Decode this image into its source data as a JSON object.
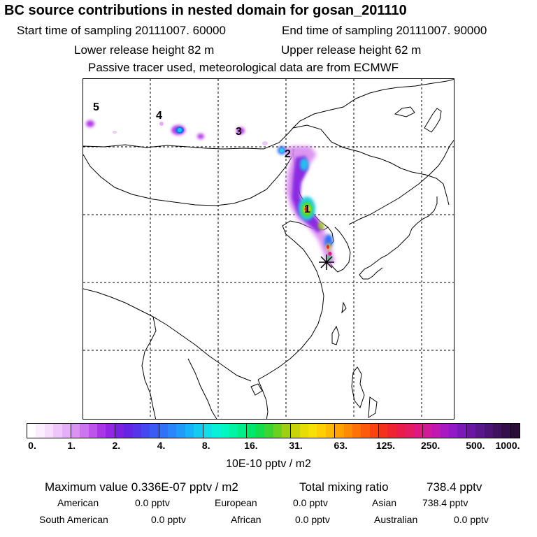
{
  "header": {
    "title": "BC  source contributions in nested domain for gosan_201110",
    "start_label": "Start time of sampling 20111007. 60000",
    "end_label": "End time of sampling 20111007. 90000",
    "lower_label": "Lower release height   82 m",
    "upper_label": "Upper release height   62 m",
    "tracer_note": "Passive tracer used, meteorological data are from ECMWF"
  },
  "map": {
    "source_markers": [
      "1",
      "2",
      "3",
      "4",
      "5"
    ],
    "receptor_symbol": "star"
  },
  "colorbar": {
    "tick_labels": [
      "0.",
      "1.",
      "2.",
      "4.",
      "8.",
      "16.",
      "31.",
      "63.",
      "125.",
      "250.",
      "500.",
      "1000."
    ],
    "colors": [
      "#ffffff",
      "#fbeefe",
      "#f6dcfd",
      "#efc6fb",
      "#e6aef8",
      "#da93f5",
      "#cd74f1",
      "#bd55ec",
      "#aa36e7",
      "#9327e3",
      "#7a22e0",
      "#6625e4",
      "#5535ea",
      "#4448ef",
      "#3a5cf4",
      "#3270f7",
      "#2a86f9",
      "#209bfa",
      "#18b2f8",
      "#14c9f2",
      "#10dde8",
      "#08f0d8",
      "#00f7c2",
      "#00f4a4",
      "#00ee86",
      "#00e66a",
      "#10de4c",
      "#3ad532",
      "#6bd11e",
      "#9ecf12",
      "#c8d40a",
      "#e6dc06",
      "#f7e005",
      "#fcd004",
      "#fdba03",
      "#fea204",
      "#fe8a06",
      "#fe7208",
      "#fc5a0c",
      "#f94412",
      "#f4321c",
      "#ef2430",
      "#ea1d48",
      "#e51b64",
      "#de1a80",
      "#d2199a",
      "#c018b0",
      "#aa18c2",
      "#9318c8",
      "#7d18b8",
      "#6a17a4",
      "#5a168c",
      "#4c1474",
      "#40125e",
      "#340f4a",
      "#2a0c38"
    ],
    "units": "10E-10 pptv / m2"
  },
  "summary": {
    "max_label": "Maximum value  0.336E-07 pptv / m2",
    "total_label": "Total mixing ratio",
    "total_value": "738.4 pptv",
    "regions": [
      {
        "name": "American",
        "value": "0.0 pptv"
      },
      {
        "name": "European",
        "value": "0.0 pptv"
      },
      {
        "name": "Asian",
        "value": "738.4 pptv"
      },
      {
        "name": "South American",
        "value": "0.0 pptv"
      },
      {
        "name": "African",
        "value": "0.0 pptv"
      },
      {
        "name": "Australian",
        "value": "0.0 pptv"
      }
    ]
  }
}
